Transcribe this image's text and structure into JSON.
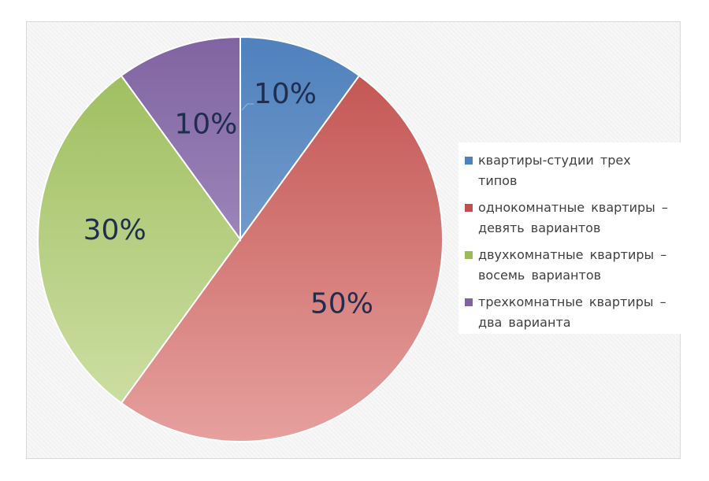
{
  "chart_data": {
    "type": "pie",
    "categories": [
      "квартиры-студии трех типов",
      "однокомнатные квартиры – девять вариантов",
      "двухкомнатные квартиры – восемь вариантов",
      "трехкомнатные квартиры – два варианта"
    ],
    "values": [
      10,
      50,
      30,
      10
    ],
    "labels": [
      "10%",
      "50%",
      "30%",
      "10%"
    ],
    "legend_position": "right",
    "colors": [
      {
        "top": "#4f81bd",
        "bottom": "#95b3d7"
      },
      {
        "top": "#c0504d",
        "bottom": "#e6a09e"
      },
      {
        "top": "#9bbb59",
        "bottom": "#d1e2aa"
      },
      {
        "top": "#8064a2",
        "bottom": "#b7a6cf"
      }
    ]
  },
  "legend": {
    "items": [
      {
        "label": "квартиры-студии трех типов",
        "color": "#4f81bd"
      },
      {
        "label": "однокомнатные квартиры – девять вариантов",
        "color": "#c0504d"
      },
      {
        "label": "двухкомнатные квартиры – восемь вариантов",
        "color": "#9bbb59"
      },
      {
        "label": "трехкомнатные квартиры – два варианта",
        "color": "#8064a2"
      }
    ]
  }
}
